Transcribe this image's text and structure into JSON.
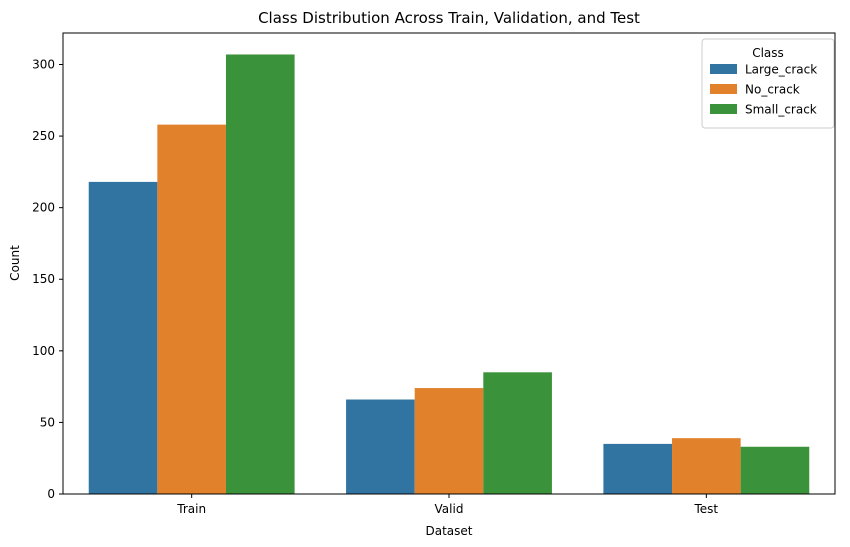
{
  "chart_data": {
    "type": "bar",
    "title": "Class Distribution Across Train, Validation, and Test",
    "xlabel": "Dataset",
    "ylabel": "Count",
    "categories": [
      "Train",
      "Valid",
      "Test"
    ],
    "ylim": [
      0,
      322
    ],
    "yticks": [
      0,
      50,
      100,
      150,
      200,
      250,
      300
    ],
    "grid": false,
    "legend": {
      "title": "Class",
      "placement": "top-right"
    },
    "series": [
      {
        "name": "Large_crack",
        "color": "#3274a1",
        "values": [
          218,
          66,
          35
        ]
      },
      {
        "name": "No_crack",
        "color": "#e1812c",
        "values": [
          258,
          74,
          39
        ]
      },
      {
        "name": "Small_crack",
        "color": "#3a923a",
        "values": [
          307,
          85,
          33
        ]
      }
    ]
  }
}
